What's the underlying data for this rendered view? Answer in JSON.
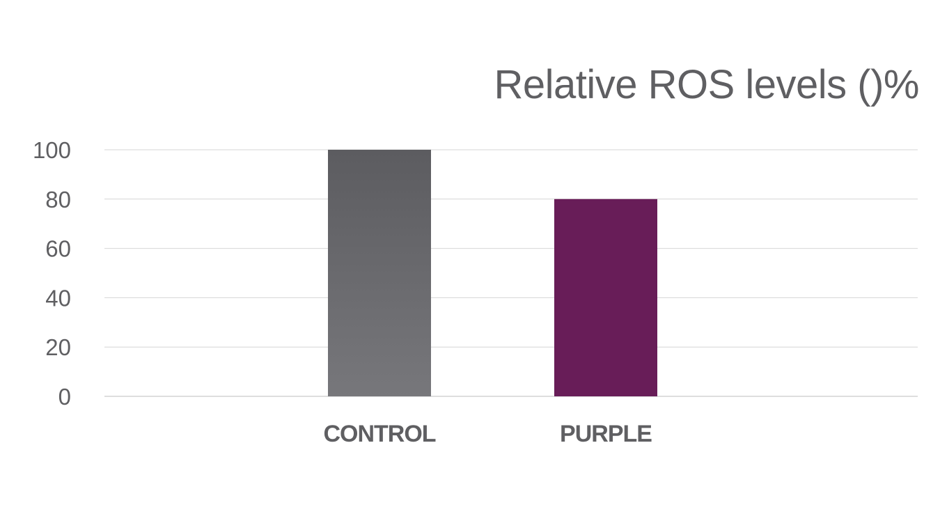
{
  "chart_data": {
    "type": "bar",
    "title": "Relative ROS levels ()%",
    "categories": [
      "CONTROL",
      "PURPLE"
    ],
    "values": [
      100,
      80
    ],
    "colors": [
      "#6c6c70",
      "#681d58"
    ],
    "gradient_top": "#5c5c60",
    "gradient_bottom": "#77777b",
    "ylim": [
      0,
      100
    ],
    "yticks": [
      0,
      20,
      40,
      60,
      80,
      100
    ],
    "ytick_labels": [
      "0",
      "20",
      "40",
      "60",
      "80",
      "100"
    ],
    "grid": true,
    "xlabel": "",
    "ylabel": ""
  }
}
